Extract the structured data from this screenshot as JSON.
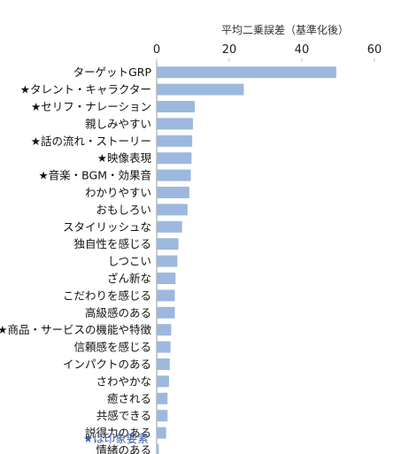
{
  "chart_data": {
    "type": "bar",
    "orientation": "horizontal",
    "title": "",
    "xlabel": "平均二乗誤差（基準化後）",
    "ylabel": "",
    "xlim": [
      0,
      60
    ],
    "xticks": [
      "0",
      "20",
      "40",
      "60"
    ],
    "grid": false,
    "categories": [
      "ターゲットGRP",
      "★タレント・キャラクター",
      "★セリフ・ナレーション",
      "親しみやすい",
      "★話の流れ・ストーリー",
      "★映像表現",
      "★音楽・BGM・効果音",
      "わかりやすい",
      "おもしろい",
      "スタイリッシュな",
      "独自性を感じる",
      "しつこい",
      "ざん新な",
      "こだわりを感じる",
      "高級感のある",
      "★商品・サービスの機能や特徴",
      "信頼感を感じる",
      "インパクトのある",
      "さわやかな",
      "癒される",
      "共感できる",
      "説得力のある",
      "情緒のある"
    ],
    "values": [
      49.5,
      24,
      10.5,
      10,
      9.8,
      9.6,
      9.4,
      9,
      8.5,
      7,
      6,
      5.7,
      5.2,
      5,
      5,
      4,
      3.8,
      3.6,
      3.4,
      3,
      3,
      2.6,
      0.6
    ],
    "bar_color": "#9db8de",
    "note": "★は印象要素",
    "note_color": "#3a5ea8"
  }
}
